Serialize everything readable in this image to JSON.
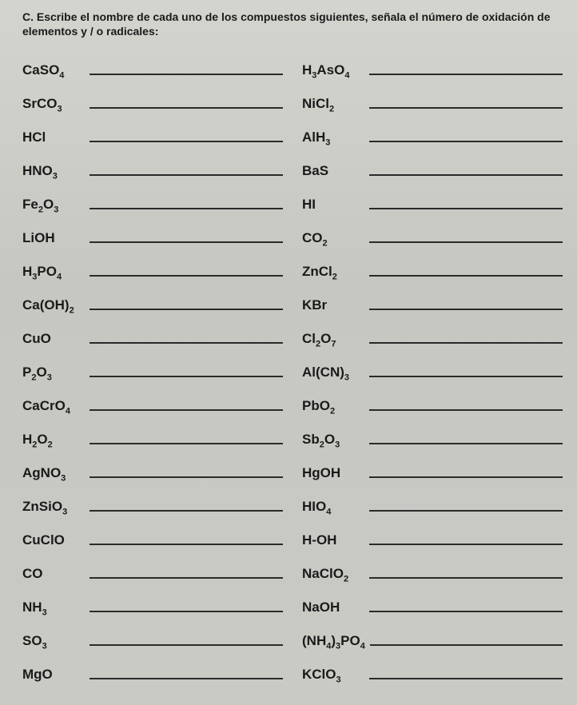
{
  "header": "C. Escribe el nombre de cada uno de los compuestos siguientes, señala el número de oxidación de elementos y / o radicales:",
  "left": [
    {
      "html": "CaSO<sub>4</sub>"
    },
    {
      "html": "SrCO<sub>3</sub>"
    },
    {
      "html": "HCl"
    },
    {
      "html": "HNO<sub>3</sub>"
    },
    {
      "html": "Fe<sub>2</sub>O<sub>3</sub>"
    },
    {
      "html": "LiOH"
    },
    {
      "html": "H<sub>3</sub>PO<sub>4</sub>"
    },
    {
      "html": "Ca(OH)<sub>2</sub>"
    },
    {
      "html": "CuO"
    },
    {
      "html": "P<sub>2</sub>O<sub>3</sub>"
    },
    {
      "html": "CaCrO<sub>4</sub>"
    },
    {
      "html": "H<sub>2</sub>O<sub>2</sub>"
    },
    {
      "html": "AgNO<sub>3</sub>"
    },
    {
      "html": "ZnSiO<sub>3</sub>"
    },
    {
      "html": "CuClO"
    },
    {
      "html": "CO"
    },
    {
      "html": "NH<sub>3</sub>"
    },
    {
      "html": "SO<sub>3</sub>"
    },
    {
      "html": "MgO"
    }
  ],
  "right": [
    {
      "html": "H<sub>3</sub>AsO<sub>4</sub>"
    },
    {
      "html": "NiCl<sub>2</sub>"
    },
    {
      "html": "AlH<sub>3</sub>"
    },
    {
      "html": "BaS"
    },
    {
      "html": "HI"
    },
    {
      "html": "CO<sub>2</sub>"
    },
    {
      "html": "ZnCl<sub>2</sub>"
    },
    {
      "html": "KBr"
    },
    {
      "html": "Cl<sub>2</sub>O<sub>7</sub>"
    },
    {
      "html": "Al(CN)<sub>3</sub>"
    },
    {
      "html": "PbO<sub>2</sub>"
    },
    {
      "html": "Sb<sub>2</sub>O<sub>3</sub>"
    },
    {
      "html": "HgOH"
    },
    {
      "html": "HIO<sub>4</sub>"
    },
    {
      "html": "H-OH"
    },
    {
      "html": "NaClO<sub>2</sub>"
    },
    {
      "html": "NaOH"
    },
    {
      "html": "(NH<sub>4</sub>)<sub>3</sub>PO<sub>4</sub>"
    },
    {
      "html": "KClO<sub>3</sub>"
    }
  ]
}
